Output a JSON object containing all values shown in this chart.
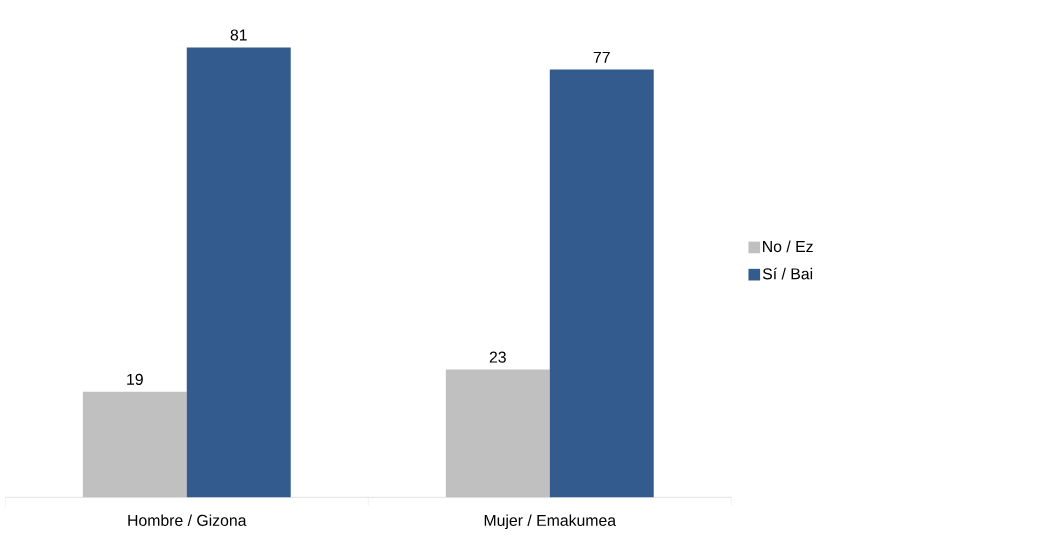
{
  "chart_data": {
    "type": "bar",
    "categories": [
      "Hombre / Gizona",
      "Mujer / Emakumea"
    ],
    "series": [
      {
        "name": "No / Ez",
        "color": "#c0c0c0",
        "values": [
          19,
          23
        ]
      },
      {
        "name": "Sí / Bai",
        "color": "#335b8e",
        "values": [
          81,
          77
        ]
      }
    ],
    "data_labels": true,
    "legend": "right"
  }
}
